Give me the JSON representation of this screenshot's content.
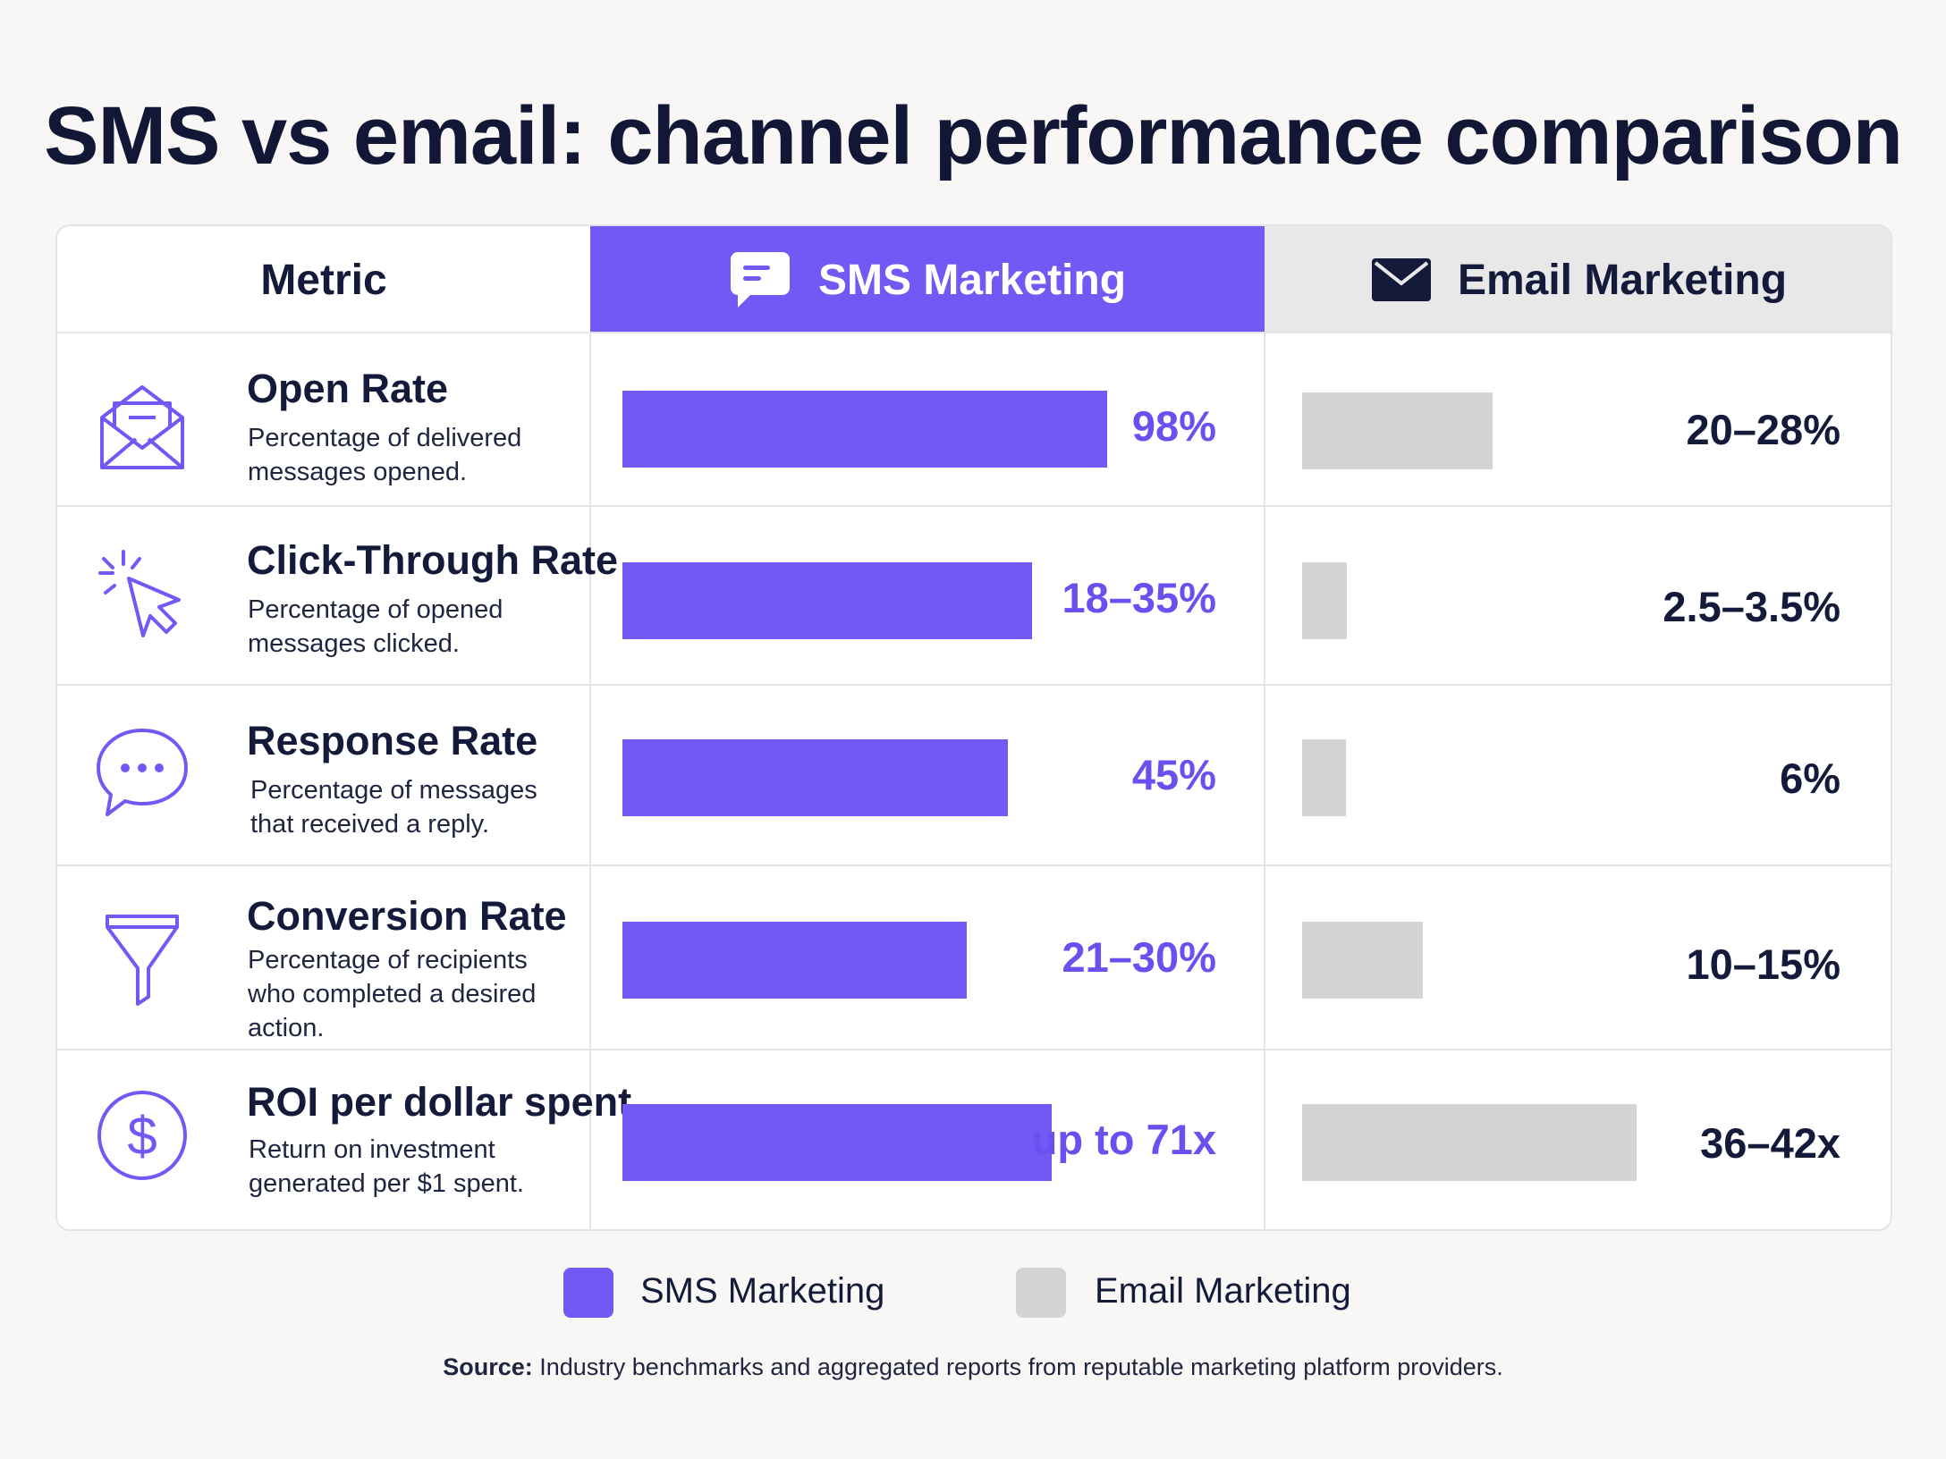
{
  "title": "SMS vs email: channel performance comparison",
  "header": {
    "metric": "Metric",
    "sms": "SMS Marketing",
    "email": "Email Marketing"
  },
  "colors": {
    "sms": "#7258f5",
    "email": "#d4d4d6",
    "text": "#141a3a"
  },
  "rows": [
    {
      "icon": "envelope-open-icon",
      "name": "Open Rate",
      "desc": "Percentage of delivered messages opened.",
      "sms_label": "98%",
      "email_label": "20–28%"
    },
    {
      "icon": "cursor-click-icon",
      "name": "Click-Through Rate",
      "desc": "Percentage of opened messages clicked.",
      "sms_label": "18–35%",
      "email_label": "2.5–3.5%"
    },
    {
      "icon": "chat-bubble-icon",
      "name": "Response Rate",
      "desc": "Percentage of messages that received a reply.",
      "sms_label": "45%",
      "email_label": "6%"
    },
    {
      "icon": "funnel-icon",
      "name": "Conversion Rate",
      "desc": "Percentage of recipients who completed a desired action.",
      "sms_label": "21–30%",
      "email_label": "10–15%"
    },
    {
      "icon": "dollar-circle-icon",
      "name": "ROI per dollar spent",
      "desc": "Return on investment generated per $1 spent.",
      "sms_label": "up to 71x",
      "email_label": "36–42x"
    }
  ],
  "chart_data": {
    "type": "bar",
    "categories": [
      "Open Rate",
      "Click-Through Rate",
      "Response Rate",
      "Conversion Rate",
      "ROI per dollar spent"
    ],
    "series": [
      {
        "name": "SMS Marketing",
        "labels": [
          "98%",
          "18–35%",
          "45%",
          "21–30%",
          "up to 71x"
        ],
        "bar_fraction": [
          1.0,
          0.845,
          0.795,
          0.71,
          0.886
        ]
      },
      {
        "name": "Email Marketing",
        "labels": [
          "20–28%",
          "2.5–3.5%",
          "6%",
          "10–15%",
          "36–42x"
        ],
        "bar_fraction": [
          0.393,
          0.092,
          0.09,
          0.249,
          0.69
        ]
      }
    ],
    "legend": "bottom-center"
  },
  "legend": {
    "sms": "SMS Marketing",
    "email": "Email Marketing"
  },
  "source": {
    "label": "Source:",
    "text": "Industry benchmarks and aggregated reports from reputable marketing platform providers."
  }
}
